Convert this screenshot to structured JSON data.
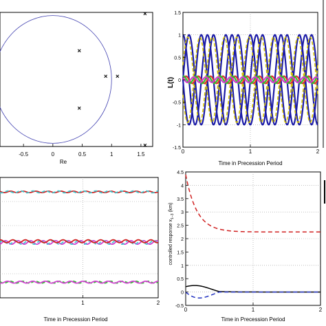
{
  "chart_data": [
    {
      "id": "pole-plot",
      "type": "scatter",
      "xlabel": "Re",
      "xticks": [
        "-0.5",
        "0",
        "0.5",
        "1",
        "1.5"
      ],
      "xlim": [
        -0.9,
        1.7
      ],
      "ylim": [
        -1.05,
        1.05
      ],
      "unit_circle": true,
      "points": [
        {
          "x": 0.45,
          "y": 0.45
        },
        {
          "x": 0.45,
          "y": -0.45
        },
        {
          "x": 0.9,
          "y": 0.05
        },
        {
          "x": 1.1,
          "y": 0.05
        },
        {
          "x": 1.57,
          "y": 1.03
        },
        {
          "x": 1.57,
          "y": -1.03
        }
      ]
    },
    {
      "id": "L-plot",
      "type": "line",
      "ylabel": "L(t)",
      "xlabel": "Time in Precession Period",
      "xticks": [
        "0",
        "1",
        "2"
      ],
      "yticks": [
        "1.5",
        "1",
        "0.5",
        "0",
        "-0.5",
        "-1",
        "-1.5"
      ],
      "xlim": [
        0,
        2
      ],
      "ylim": [
        -1.5,
        1.5
      ],
      "grid": true,
      "series": [
        {
          "color": "#1a1aa6",
          "amplitude": 1.0,
          "frequency": 5.5,
          "phase": 0.0
        },
        {
          "color": "#1a1aa6",
          "amplitude": 1.0,
          "frequency": 5.5,
          "phase": 1.57
        },
        {
          "color": "#1a1aa6",
          "amplitude": 1.0,
          "frequency": 5.5,
          "phase": 3.14
        },
        {
          "color": "#d4c300",
          "amplitude": 0.95,
          "frequency": 5.5,
          "phase": 0.35
        },
        {
          "color": "#d4c300",
          "amplitude": 0.95,
          "frequency": 5.5,
          "phase": 3.5
        },
        {
          "color": "#e03030",
          "amplitude": 0.08,
          "frequency": 11,
          "phase": 0.0
        },
        {
          "color": "#30c030",
          "amplitude": 0.08,
          "frequency": 11,
          "phase": 1.2
        },
        {
          "color": "#d040d0",
          "amplitude": 0.06,
          "frequency": 11,
          "phase": 2.4
        }
      ]
    },
    {
      "id": "state-plot",
      "type": "line",
      "xlabel": "Time in Precession Period",
      "xticks": [
        "1",
        "2"
      ],
      "xlim": [
        -0.1,
        2
      ],
      "ylim": [
        0,
        1
      ],
      "grid": true,
      "series": [
        {
          "color": "#d02020",
          "level": 0.88,
          "ripple": 0.006
        },
        {
          "color": "#40c8d0",
          "level": 0.88,
          "ripple": 0.008
        },
        {
          "color": "#d040d0",
          "level": 0.46,
          "ripple": 0.015
        },
        {
          "color": "#40c8d0",
          "level": 0.46,
          "ripple": 0.015
        },
        {
          "color": "#d02020",
          "level": 0.47,
          "ripple": 0.012
        },
        {
          "color": "#30c030",
          "level": 0.13,
          "ripple": 0.008
        },
        {
          "color": "#d040d0",
          "level": 0.13,
          "ripple": 0.008
        }
      ]
    },
    {
      "id": "response-plot",
      "type": "line",
      "ylabel": "controlled response x",
      "ylabel_sub": "1−3",
      "ylabel_unit": " (km)",
      "xlabel": "Time in Precession Period",
      "xticks": [
        "0",
        "1",
        "2"
      ],
      "yticks": [
        "4.5",
        "4",
        "3.5",
        "3",
        "2.5",
        "2",
        "1.5",
        "1",
        "0.5",
        "0",
        "-0.5"
      ],
      "xlim": [
        0,
        2
      ],
      "ylim": [
        -0.5,
        4.5
      ],
      "grid": true,
      "series": [
        {
          "color": "#d02020",
          "dash": "6,4",
          "start": 4.4,
          "end": 2.25,
          "rate": 6.0
        },
        {
          "color": "#000000",
          "dash": "",
          "start": 0.2,
          "end": 0.0,
          "rate": 5.0,
          "bump": 0.25
        },
        {
          "color": "#2030c0",
          "dash": "6,4",
          "start": 0.0,
          "end": 0.0,
          "rate": 4.0,
          "bump": -0.35
        }
      ]
    }
  ]
}
